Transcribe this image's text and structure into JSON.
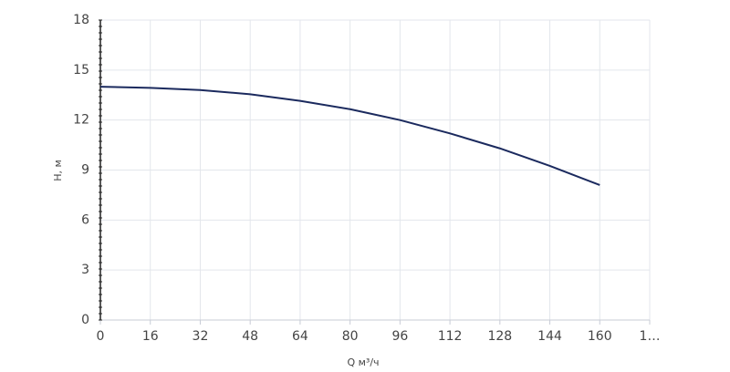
{
  "chart_data": {
    "type": "line",
    "x_label": "Q м³/ч",
    "y_label": "H, м",
    "x": [
      0,
      16,
      32,
      48,
      64,
      80,
      96,
      112,
      128,
      144,
      160
    ],
    "series": [
      {
        "name": "H",
        "color": "#1b2a5e",
        "values": [
          14,
          13.93,
          13.8,
          13.55,
          13.15,
          12.65,
          12.0,
          11.2,
          10.3,
          9.25,
          8.1
        ]
      }
    ],
    "xlim": [
      0,
      176
    ],
    "xticks": [
      0,
      16,
      32,
      48,
      64,
      80,
      96,
      112,
      128,
      144,
      160,
      {
        "value": 176,
        "label": "1…"
      }
    ],
    "ylim": [
      0,
      18
    ],
    "yticks": [
      0,
      3,
      6,
      9,
      12,
      15,
      18
    ],
    "grid": true
  }
}
